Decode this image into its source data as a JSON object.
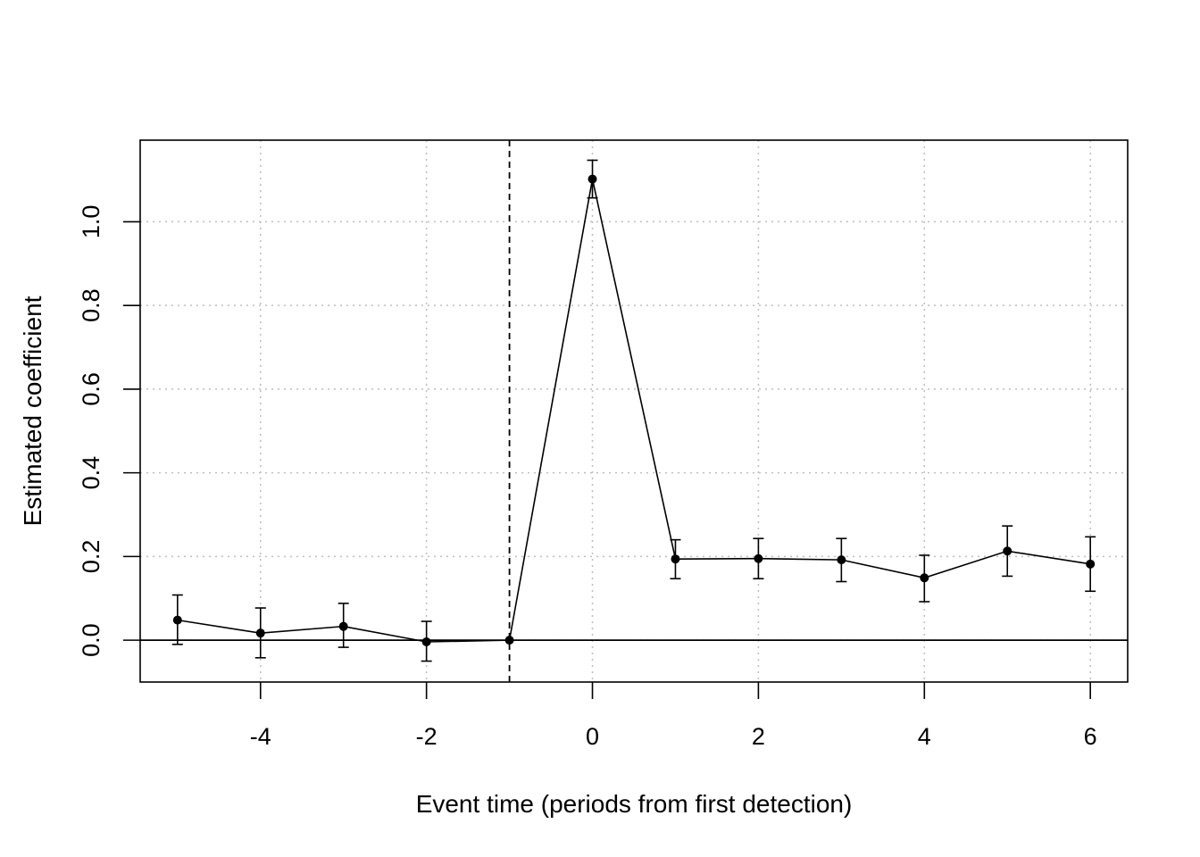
{
  "chart_data": {
    "type": "line",
    "title": "",
    "xlabel": "Event time (periods from first detection)",
    "ylabel": "Estimated coefficient",
    "xlim": [
      -5.45,
      6.45
    ],
    "ylim": [
      -0.1,
      1.195
    ],
    "x_ticks": [
      -4,
      -2,
      0,
      2,
      4,
      6
    ],
    "x_tick_labels": [
      "-4",
      "-2",
      "0",
      "2",
      "4",
      "6"
    ],
    "y_ticks": [
      0.0,
      0.2,
      0.4,
      0.6,
      0.8,
      1.0
    ],
    "y_tick_labels": [
      "0.0",
      "0.2",
      "0.4",
      "0.6",
      "0.8",
      "1.0"
    ],
    "grid": true,
    "reference_line_y": 0,
    "event_line_x": -1,
    "series": [
      {
        "x": [
          -5,
          -4,
          -3,
          -2,
          -1,
          0,
          1,
          2,
          3,
          4,
          5,
          6
        ],
        "values": [
          0.048,
          0.017,
          0.033,
          -0.004,
          0.0,
          1.102,
          0.194,
          0.195,
          0.192,
          0.149,
          0.213,
          0.182
        ],
        "ci_lower": [
          -0.01,
          -0.042,
          -0.017,
          -0.05,
          0.0,
          1.057,
          0.147,
          0.147,
          0.14,
          0.092,
          0.153,
          0.117
        ],
        "ci_upper": [
          0.108,
          0.077,
          0.088,
          0.045,
          0.0,
          1.147,
          0.24,
          0.243,
          0.243,
          0.203,
          0.273,
          0.247
        ]
      }
    ],
    "colors": {
      "line": "#000000",
      "grid": "#bebebe"
    }
  }
}
